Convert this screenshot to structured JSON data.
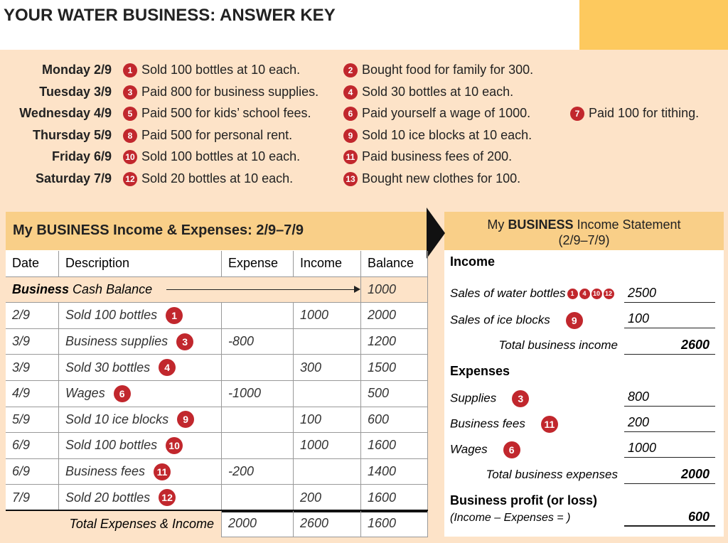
{
  "title": "YOUR WATER BUSINESS: ANSWER KEY",
  "days": [
    {
      "day": "Monday 2/9",
      "events": [
        {
          "num": 1,
          "text": "Sold 100 bottles at 10 each."
        },
        {
          "num": 2,
          "text": "Bought food for family for 300."
        }
      ]
    },
    {
      "day": "Tuesday 3/9",
      "events": [
        {
          "num": 3,
          "text": "Paid 800 for business supplies."
        },
        {
          "num": 4,
          "text": "Sold 30 bottles at 10 each."
        }
      ]
    },
    {
      "day": "Wednesday 4/9",
      "events": [
        {
          "num": 5,
          "text": "Paid 500 for kids’ school fees."
        },
        {
          "num": 6,
          "text": "Paid yourself a wage of 1000."
        },
        {
          "num": 7,
          "text": "Paid 100 for tithing."
        }
      ]
    },
    {
      "day": "Thursday 5/9",
      "events": [
        {
          "num": 8,
          "text": "Paid 500 for personal rent."
        },
        {
          "num": 9,
          "text": "Sold 10 ice blocks at 10 each."
        }
      ]
    },
    {
      "day": "Friday 6/9",
      "events": [
        {
          "num": 10,
          "text": "Sold 100 bottles at 10 each."
        },
        {
          "num": 11,
          "text": "Paid business fees of 200."
        }
      ]
    },
    {
      "day": "Saturday 7/9",
      "events": [
        {
          "num": 12,
          "text": "Sold 20 bottles at 10 each."
        },
        {
          "num": 13,
          "text": "Bought new clothes for 100."
        }
      ]
    }
  ],
  "ledger": {
    "title": "My BUSINESS Income & Expenses: 2/9–7/9",
    "header": [
      "Date",
      "Description",
      "Expense",
      "Income",
      "Balance"
    ],
    "cash_balance": {
      "bold": "Business",
      "label": "Cash Balance",
      "value": 1000
    },
    "rows": [
      {
        "date": "2/9",
        "description": "Sold 100 bottles",
        "num": 1,
        "expense": null,
        "income": 1000,
        "balance": 2000
      },
      {
        "date": "3/9",
        "description": "Business supplies",
        "num": 3,
        "expense": -800,
        "income": null,
        "balance": 1200
      },
      {
        "date": "3/9",
        "description": "Sold 30 bottles",
        "num": 4,
        "expense": null,
        "income": 300,
        "balance": 1500
      },
      {
        "date": "4/9",
        "description": "Wages",
        "num": 6,
        "expense": -1000,
        "income": null,
        "balance": 500
      },
      {
        "date": "5/9",
        "description": "Sold 10 ice blocks",
        "num": 9,
        "expense": null,
        "income": 100,
        "balance": 600
      },
      {
        "date": "6/9",
        "description": "Sold 100 bottles",
        "num": 10,
        "expense": null,
        "income": 1000,
        "balance": 1600
      },
      {
        "date": "6/9",
        "description": "Business fees",
        "num": 11,
        "expense": -200,
        "income": null,
        "balance": 1400
      },
      {
        "date": "7/9",
        "description": "Sold 20 bottles",
        "num": 12,
        "expense": null,
        "income": 200,
        "balance": 1600
      }
    ],
    "total": {
      "label": "Total Expenses & Income",
      "expense": 2000,
      "income": 2600,
      "balance": 1600
    }
  },
  "statement": {
    "title_pre": "My",
    "title_bold": "BUSINESS",
    "title_post": "Income Statement",
    "period": "(2/9–7/9)",
    "income": {
      "heading": "Income",
      "items": [
        {
          "label": "Sales of water bottles",
          "nums": [
            1,
            4,
            10,
            12
          ],
          "value": 2500
        },
        {
          "label": "Sales of ice blocks",
          "nums": [
            9
          ],
          "value": 100
        }
      ],
      "total_label": "Total business income",
      "total": 2600
    },
    "expenses": {
      "heading": "Expenses",
      "items": [
        {
          "label": "Supplies",
          "nums": [
            3
          ],
          "value": 800
        },
        {
          "label": "Business fees",
          "nums": [
            11
          ],
          "value": 200
        },
        {
          "label": "Wages",
          "nums": [
            6
          ],
          "value": 1000
        }
      ],
      "total_label": "Total business expenses",
      "total": 2000
    },
    "profit": {
      "label": "Business profit (or loss)",
      "formula": "(Income – Expenses = )",
      "value": 600
    }
  }
}
